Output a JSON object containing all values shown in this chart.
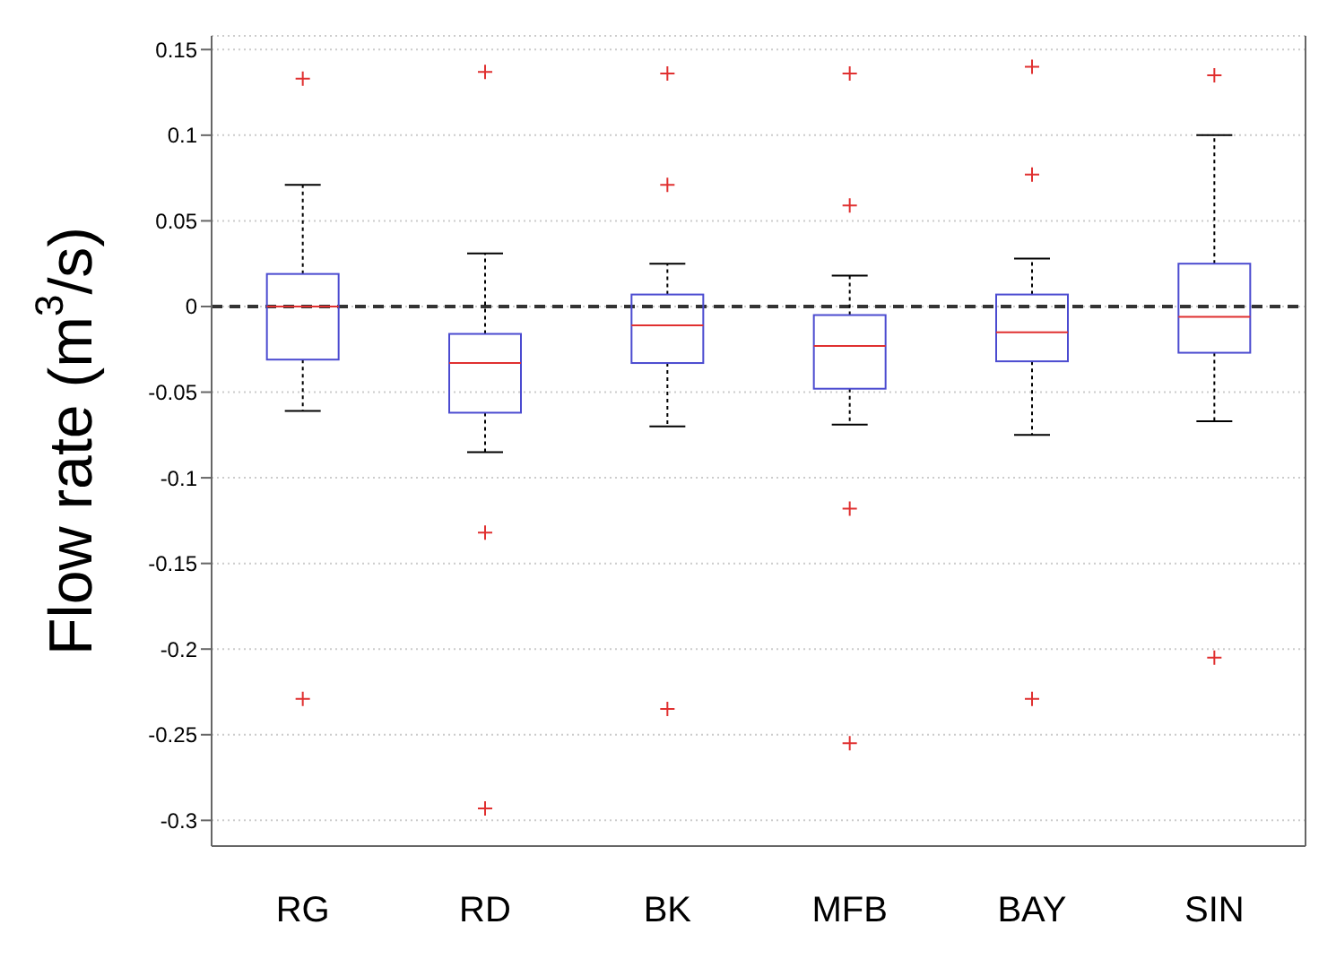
{
  "chart_data": {
    "type": "box",
    "ylabel": "Flow rate (m$^{3}$/s)",
    "categories": [
      "RG",
      "RD",
      "BK",
      "MFB",
      "BAY",
      "SIN"
    ],
    "boxes": [
      {
        "low": -0.061,
        "q1": -0.031,
        "median": 0,
        "q3": 0.019,
        "high": 0.071,
        "outliers": [
          0.133,
          -0.229
        ]
      },
      {
        "low": -0.085,
        "q1": -0.062,
        "median": -0.033,
        "q3": -0.016,
        "high": 0.031,
        "outliers": [
          0.137,
          -0.132,
          -0.293
        ]
      },
      {
        "low": -0.07,
        "q1": -0.033,
        "median": -0.011,
        "q3": 0.007,
        "high": 0.025,
        "outliers": [
          0.136,
          0.071,
          -0.235
        ]
      },
      {
        "low": -0.069,
        "q1": -0.048,
        "median": -0.023,
        "q3": -0.005,
        "high": 0.018,
        "outliers": [
          0.136,
          0.059,
          -0.118,
          -0.255
        ]
      },
      {
        "low": -0.075,
        "q1": -0.032,
        "median": -0.015,
        "q3": 0.007,
        "high": 0.028,
        "outliers": [
          0.14,
          0.077,
          -0.229
        ]
      },
      {
        "low": -0.067,
        "q1": -0.027,
        "median": -0.006,
        "q3": 0.025,
        "high": 0.1,
        "outliers": [
          0.135,
          -0.205
        ]
      }
    ],
    "color": "#4b4bd0",
    "marker": "cross",
    "ylim": [
      -0.315,
      0.158
    ],
    "yticks": [
      0.15,
      0.1,
      0.05,
      0,
      -0.05,
      -0.1,
      -0.15,
      -0.2,
      -0.25,
      -0.3
    ],
    "grid": "y",
    "ref_lines": [
      {
        "axis": "y",
        "value": 0,
        "color": "#333333",
        "line_style": "dashed"
      }
    ]
  }
}
